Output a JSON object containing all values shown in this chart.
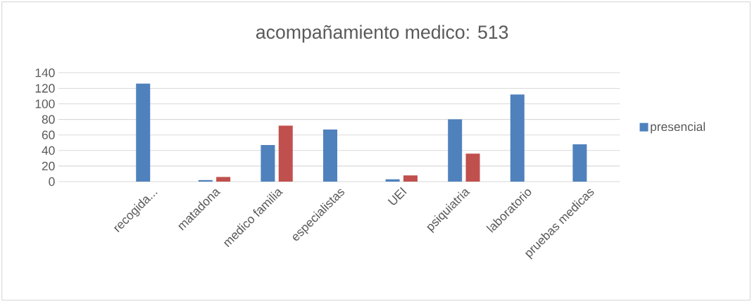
{
  "chart_data": {
    "type": "bar",
    "title": "acompañamiento medico: 513",
    "categories": [
      null,
      "recogida...",
      "matadona",
      "medico familia",
      "especialistas",
      "UEI",
      "psiquiatria",
      "laboratorio",
      "pruebas medicas"
    ],
    "series": [
      {
        "name": "presencial",
        "color": "#4f81bd",
        "values": [
          null,
          126,
          2,
          47,
          67,
          3,
          80,
          112,
          48
        ]
      },
      {
        "color": "#c0504d",
        "values": [
          null,
          null,
          6,
          72,
          null,
          8,
          36,
          null,
          null
        ]
      }
    ],
    "ylim": [
      0,
      140
    ],
    "yticks": [
      0,
      20,
      40,
      60,
      80,
      100,
      120,
      140
    ],
    "grid": "y",
    "legend": "right"
  }
}
